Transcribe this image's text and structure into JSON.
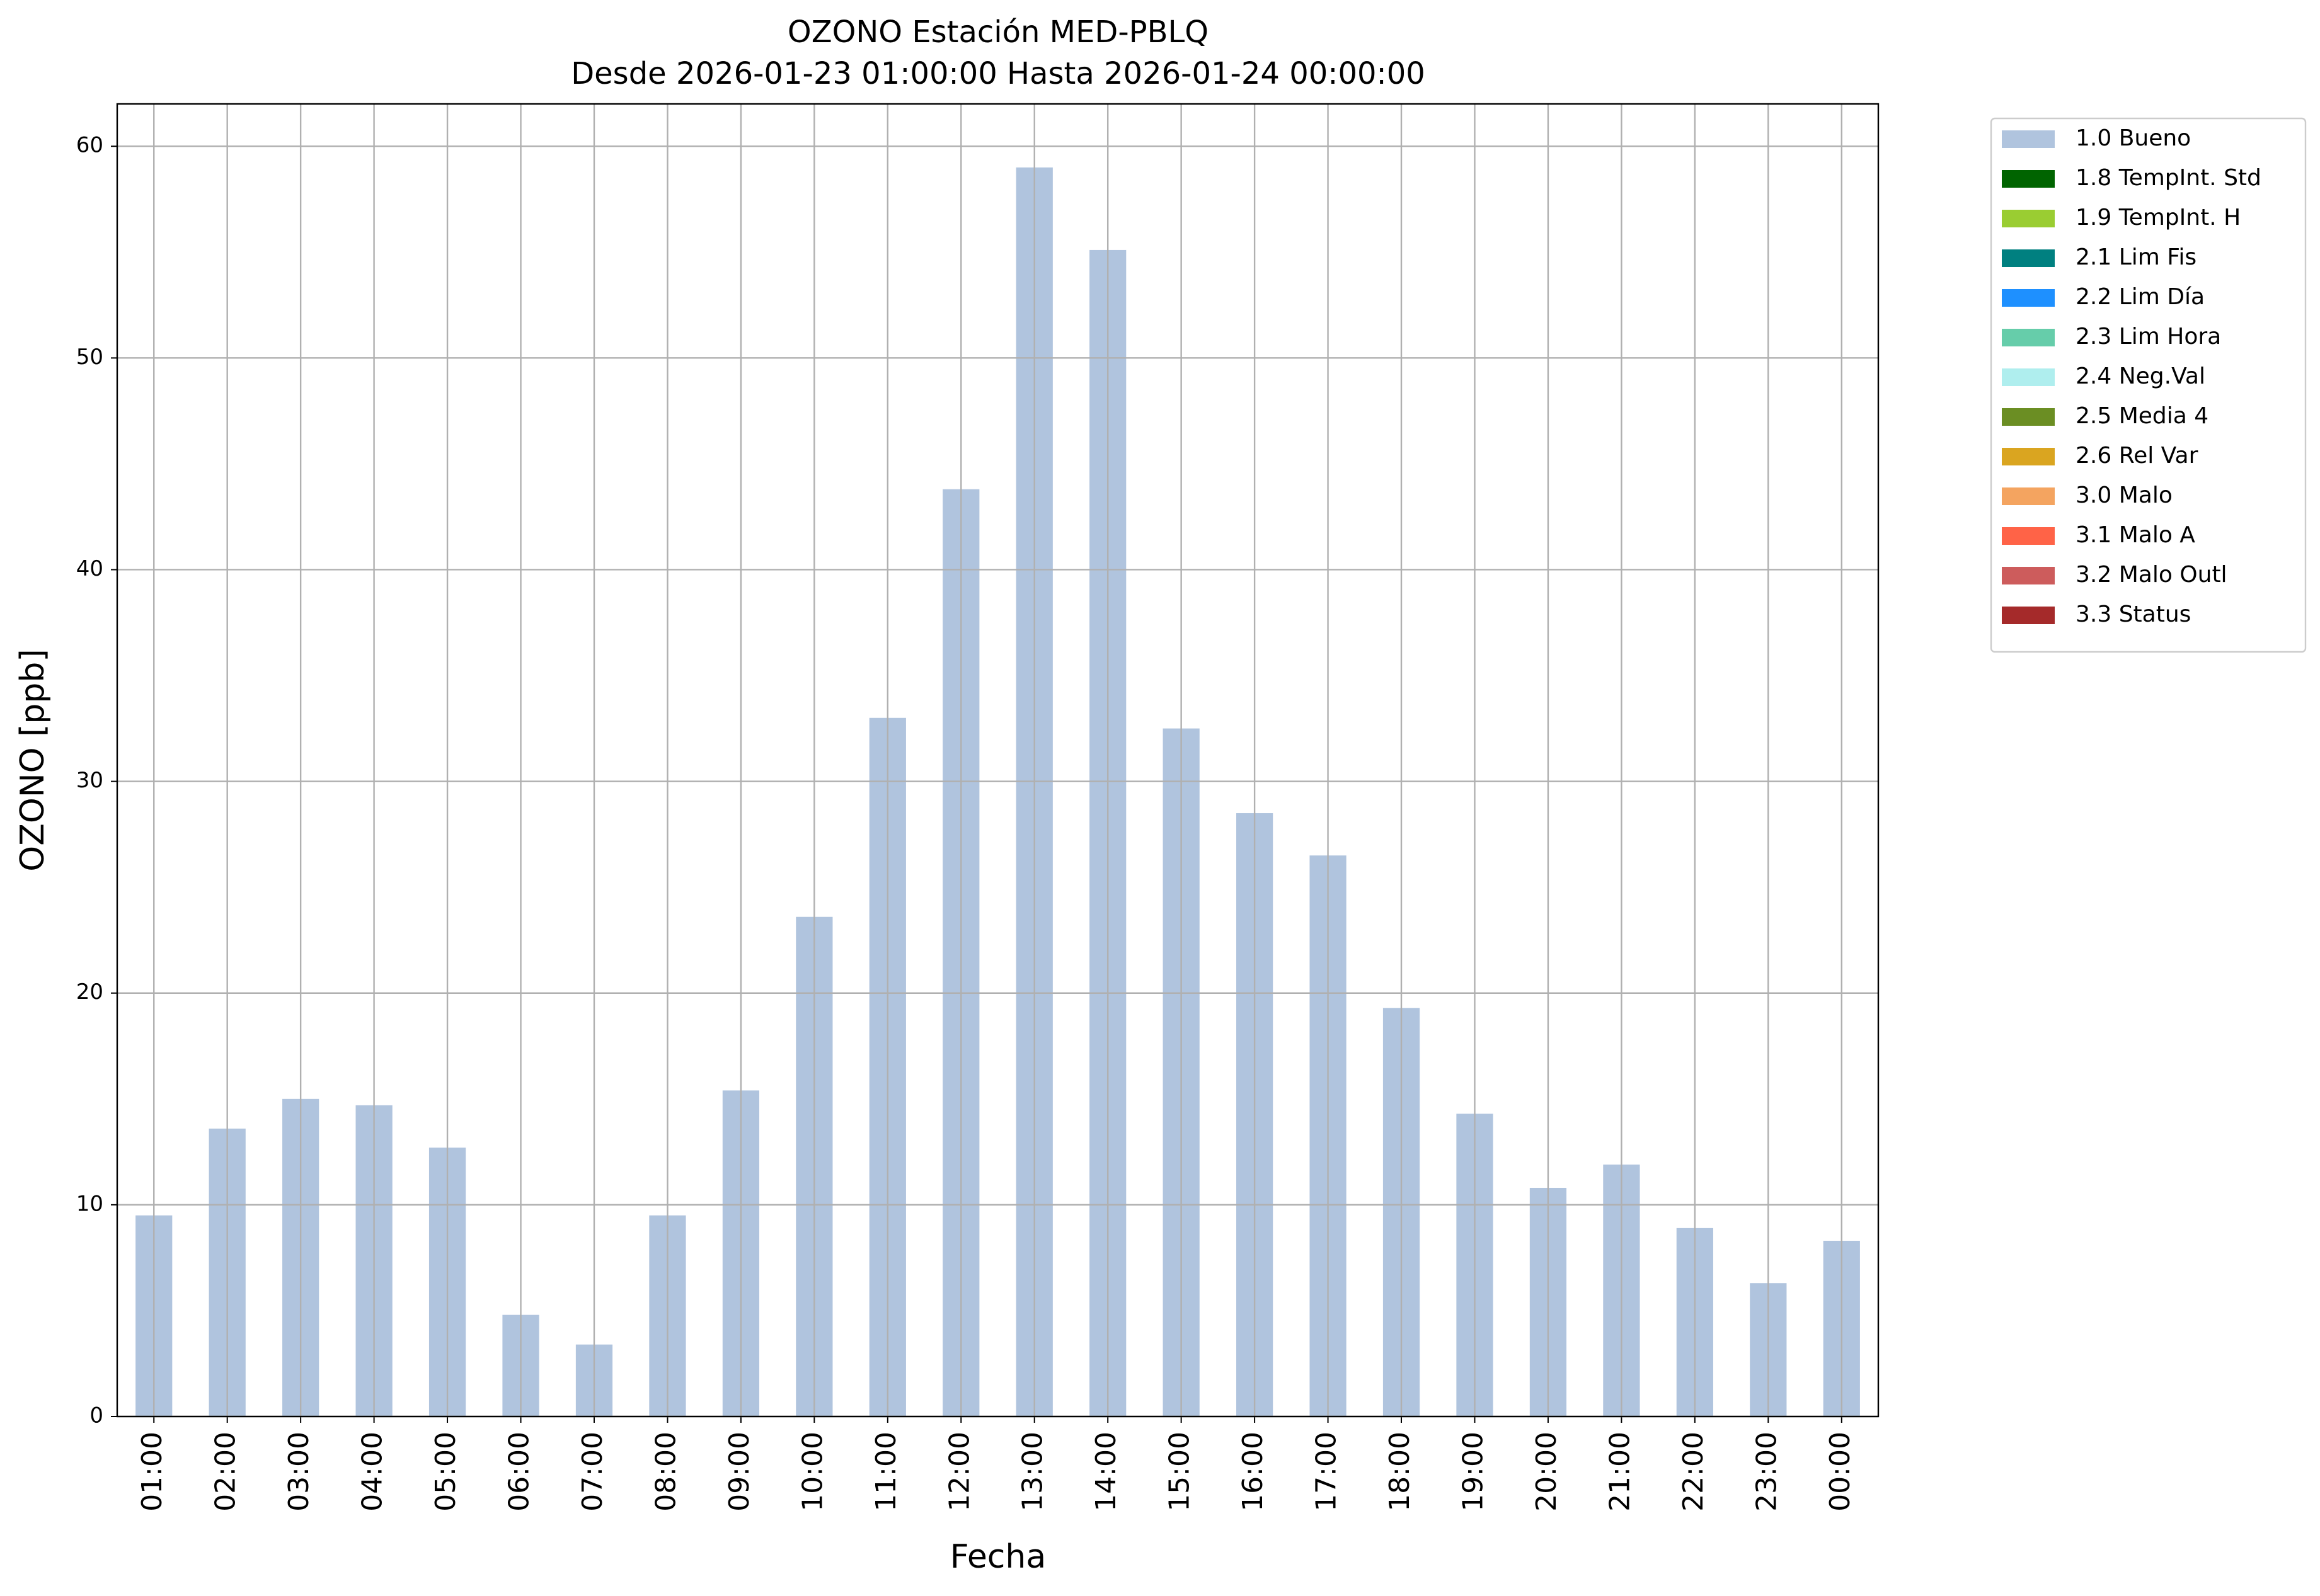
{
  "chart_data": {
    "type": "bar",
    "title": "OZONO Estación MED-PBLQ",
    "subtitle": "Desde 2026-01-23 01:00:00 Hasta 2026-01-24 00:00:00",
    "x_label": "Fecha",
    "y_label": "OZONO [ppb]",
    "categories": [
      "01:00",
      "02:00",
      "03:00",
      "04:00",
      "05:00",
      "06:00",
      "07:00",
      "08:00",
      "09:00",
      "10:00",
      "11:00",
      "12:00",
      "13:00",
      "14:00",
      "15:00",
      "16:00",
      "17:00",
      "18:00",
      "19:00",
      "20:00",
      "21:00",
      "22:00",
      "23:00",
      "00:00"
    ],
    "series": [
      {
        "name": "1.0 Bueno",
        "color": "#b0c4de",
        "values": [
          9.5,
          13.6,
          15.0,
          14.7,
          12.7,
          4.8,
          3.4,
          9.5,
          15.4,
          23.6,
          33.0,
          43.8,
          59.0,
          55.1,
          32.5,
          28.5,
          26.5,
          19.3,
          14.3,
          10.8,
          11.9,
          8.9,
          6.3,
          8.3
        ]
      },
      {
        "name": "1.8 TempInt. Std",
        "color": "#006400"
      },
      {
        "name": "1.9 TempInt. H",
        "color": "#9acd32"
      },
      {
        "name": "2.1 Lim Fis",
        "color": "#008080"
      },
      {
        "name": "2.2 Lim Día",
        "color": "#1e90ff"
      },
      {
        "name": "2.3 Lim Hora",
        "color": "#66cdaa"
      },
      {
        "name": "2.4 Neg.Val",
        "color": "#afeeee"
      },
      {
        "name": "2.5 Media 4",
        "color": "#6b8e23"
      },
      {
        "name": "2.6 Rel Var",
        "color": "#daa520"
      },
      {
        "name": "3.0 Malo",
        "color": "#f4a460"
      },
      {
        "name": "3.1 Malo A",
        "color": "#ff6347"
      },
      {
        "name": "3.2 Malo Outl",
        "color": "#cd5c5c"
      },
      {
        "name": "3.3 Status",
        "color": "#a52a2a"
      }
    ],
    "ylim": [
      0,
      62
    ],
    "yticks": [
      0,
      10,
      20,
      30,
      40,
      50,
      60
    ],
    "grid": true,
    "legend": "outside-right"
  }
}
